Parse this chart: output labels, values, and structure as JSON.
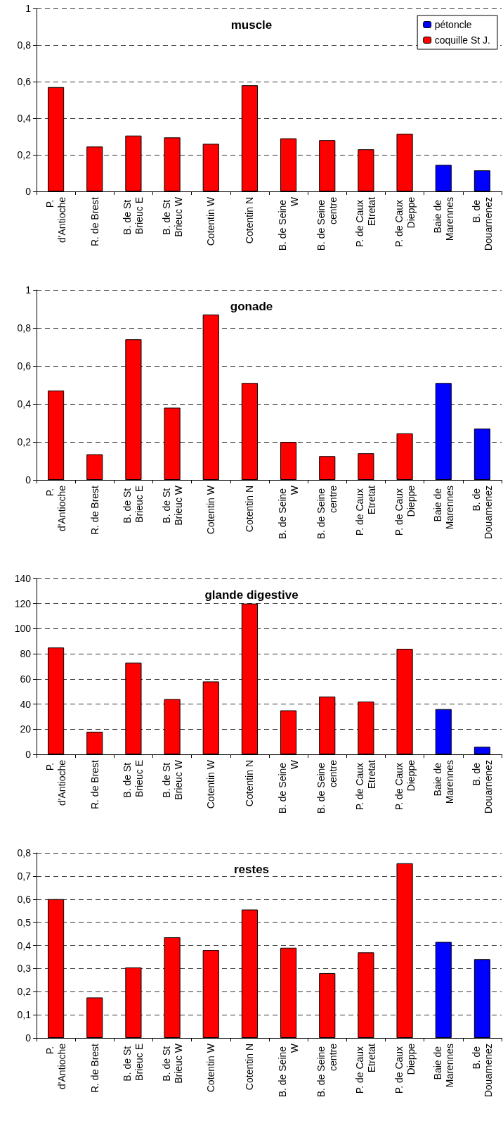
{
  "chart_data": [
    {
      "type": "bar",
      "title": "muscle",
      "categories": [
        "P. d'Antioche",
        "R. de Brest",
        "B. de St Brieuc E",
        "B. de St Brieuc W",
        "Cotentin W",
        "Cotentin N",
        "B. de Seine W",
        "B. de Seine centre",
        "P. de Caux Etretat",
        "P. de Caux Dieppe",
        "Baie de Marennes",
        "B. de Douarnenez"
      ],
      "series": [
        {
          "name": "pétoncle",
          "color": "#0000ff",
          "values": [
            null,
            null,
            null,
            null,
            null,
            null,
            null,
            null,
            null,
            null,
            0.145,
            0.115
          ]
        },
        {
          "name": "coquille St J.",
          "color": "#ff0000",
          "values": [
            0.57,
            0.245,
            0.305,
            0.295,
            0.26,
            0.58,
            0.29,
            0.28,
            0.23,
            0.315,
            null,
            null
          ]
        }
      ],
      "ylim": [
        0,
        1
      ],
      "yticks": [
        0,
        {
          "value": 0.2,
          "label": "0,2"
        },
        {
          "value": 0.4,
          "label": "0,4"
        },
        {
          "value": 0.6,
          "label": "0,6"
        },
        {
          "value": 0.8,
          "label": "0,8"
        },
        1
      ],
      "grid": "y",
      "legend": "top right"
    },
    {
      "type": "bar",
      "title": "gonade",
      "categories": [
        "P. d'Antioche",
        "R. de Brest",
        "B. de St Brieuc E",
        "B. de St Brieuc W",
        "Cotentin W",
        "Cotentin N",
        "B. de Seine W",
        "B. de Seine centre",
        "P. de Caux Etretat",
        "P. de Caux Dieppe",
        "Baie de Marennes",
        "B. de Douarnenez"
      ],
      "series": [
        {
          "color": "#0000ff",
          "values": [
            null,
            null,
            null,
            null,
            null,
            null,
            null,
            null,
            null,
            null,
            0.51,
            0.27
          ]
        },
        {
          "color": "#ff0000",
          "values": [
            0.47,
            0.135,
            0.74,
            0.38,
            0.87,
            0.51,
            0.2,
            0.125,
            0.14,
            0.245,
            null,
            null
          ]
        }
      ],
      "ylim": [
        0,
        1
      ],
      "yticks": [
        0,
        {
          "value": 0.2,
          "label": "0,2"
        },
        {
          "value": 0.4,
          "label": "0,4"
        },
        {
          "value": 0.6,
          "label": "0,6"
        },
        {
          "value": 0.8,
          "label": "0,8"
        },
        1
      ],
      "grid": "y"
    },
    {
      "type": "bar",
      "title": "glande digestive",
      "categories": [
        "P. d'Antioche",
        "R. de Brest",
        "B. de St Brieuc E",
        "B. de St Brieuc W",
        "Cotentin W",
        "Cotentin N",
        "B. de Seine W",
        "B. de Seine centre",
        "P. de Caux Etretat",
        "P. de Caux Dieppe",
        "Baie de Marennes",
        "B. de Douarnenez"
      ],
      "series": [
        {
          "color": "#0000ff",
          "values": [
            null,
            null,
            null,
            null,
            null,
            null,
            null,
            null,
            null,
            null,
            36,
            6
          ]
        },
        {
          "color": "#ff0000",
          "values": [
            85,
            18,
            73,
            44,
            58,
            120,
            35,
            46,
            42,
            84,
            null,
            null
          ]
        }
      ],
      "ylim": [
        0,
        140
      ],
      "yticks": [
        0,
        20,
        40,
        60,
        80,
        100,
        120,
        140
      ],
      "grid": "y"
    },
    {
      "type": "bar",
      "title": "restes",
      "categories": [
        "P. d'Antioche",
        "R. de Brest",
        "B. de St Brieuc E",
        "B. de St Brieuc W",
        "Cotentin W",
        "Cotentin N",
        "B. de Seine W",
        "B. de Seine centre",
        "P. de Caux Etretat",
        "P. de Caux Dieppe",
        "Baie de Marennes",
        "B. de Douarnenez"
      ],
      "series": [
        {
          "color": "#0000ff",
          "values": [
            null,
            null,
            null,
            null,
            null,
            null,
            null,
            null,
            null,
            null,
            0.415,
            0.34
          ]
        },
        {
          "color": "#ff0000",
          "values": [
            0.6,
            0.175,
            0.305,
            0.435,
            0.38,
            0.555,
            0.39,
            0.28,
            0.37,
            0.755,
            null,
            null
          ]
        }
      ],
      "ylim": [
        0,
        0.8
      ],
      "yticks": [
        0,
        {
          "value": 0.1,
          "label": "0,1"
        },
        {
          "value": 0.2,
          "label": "0,2"
        },
        {
          "value": 0.3,
          "label": "0,3"
        },
        {
          "value": 0.4,
          "label": "0,4"
        },
        {
          "value": 0.5,
          "label": "0,5"
        },
        {
          "value": 0.6,
          "label": "0,6"
        },
        {
          "value": 0.7,
          "label": "0,7"
        },
        {
          "value": 0.8,
          "label": "0,8"
        }
      ],
      "grid": "y"
    }
  ]
}
